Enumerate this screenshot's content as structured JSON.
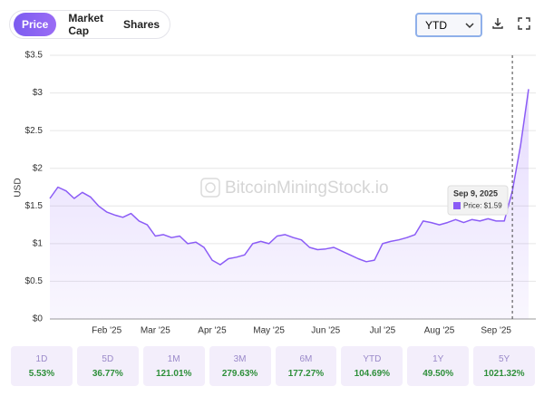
{
  "toolbar": {
    "tabs": [
      "Price",
      "Market Cap",
      "Shares"
    ],
    "range": "YTD"
  },
  "chart_data": {
    "type": "line",
    "y_label": "USD",
    "watermark": "BitcoinMiningStock.io",
    "color": "#8b5cf6",
    "grid": true,
    "x": [
      null,
      null,
      null,
      null,
      null,
      null,
      null,
      "Feb '25",
      null,
      null,
      null,
      null,
      null,
      "Mar '25",
      null,
      null,
      null,
      null,
      null,
      null,
      "Apr '25",
      null,
      null,
      null,
      null,
      null,
      null,
      "May '25",
      null,
      null,
      null,
      null,
      null,
      null,
      "Jun '25",
      null,
      null,
      null,
      null,
      null,
      null,
      "Jul '25",
      null,
      null,
      null,
      null,
      null,
      null,
      "Aug '25",
      null,
      null,
      null,
      null,
      null,
      null,
      "Sep '25",
      null,
      null,
      null,
      null
    ],
    "values": [
      1.6,
      1.75,
      1.7,
      1.6,
      1.68,
      1.62,
      1.5,
      1.42,
      1.38,
      1.35,
      1.4,
      1.3,
      1.25,
      1.1,
      1.12,
      1.08,
      1.1,
      1.0,
      1.02,
      0.95,
      0.78,
      0.72,
      0.8,
      0.82,
      0.85,
      1.0,
      1.03,
      1.0,
      1.1,
      1.12,
      1.08,
      1.05,
      0.95,
      0.92,
      0.93,
      0.95,
      0.9,
      0.85,
      0.8,
      0.76,
      0.78,
      1.0,
      1.03,
      1.05,
      1.08,
      1.12,
      1.3,
      1.28,
      1.25,
      1.28,
      1.32,
      1.28,
      1.32,
      1.3,
      1.33,
      1.3,
      1.3,
      1.7,
      2.3,
      3.05
    ],
    "ylim": [
      0,
      3.5
    ],
    "yticks": [
      {
        "value": 0,
        "label": "$0"
      },
      {
        "value": 0.5,
        "label": "$0.5"
      },
      {
        "value": 1,
        "label": "$1"
      },
      {
        "value": 1.5,
        "label": "$1.5"
      },
      {
        "value": 2,
        "label": "$2"
      },
      {
        "value": 2.5,
        "label": "$2.5"
      },
      {
        "value": 3,
        "label": "$3"
      },
      {
        "value": 3.5,
        "label": "$3.5"
      }
    ],
    "tooltip": {
      "date": "Sep 9, 2025",
      "text": "Price: $1.59"
    }
  },
  "performance": [
    {
      "period": "1D",
      "change": "5.53%"
    },
    {
      "period": "5D",
      "change": "36.77%"
    },
    {
      "period": "1M",
      "change": "121.01%"
    },
    {
      "period": "3M",
      "change": "279.63%"
    },
    {
      "period": "6M",
      "change": "177.27%"
    },
    {
      "period": "YTD",
      "change": "104.69%"
    },
    {
      "period": "1Y",
      "change": "49.50%"
    },
    {
      "period": "5Y",
      "change": "1021.32%"
    }
  ]
}
